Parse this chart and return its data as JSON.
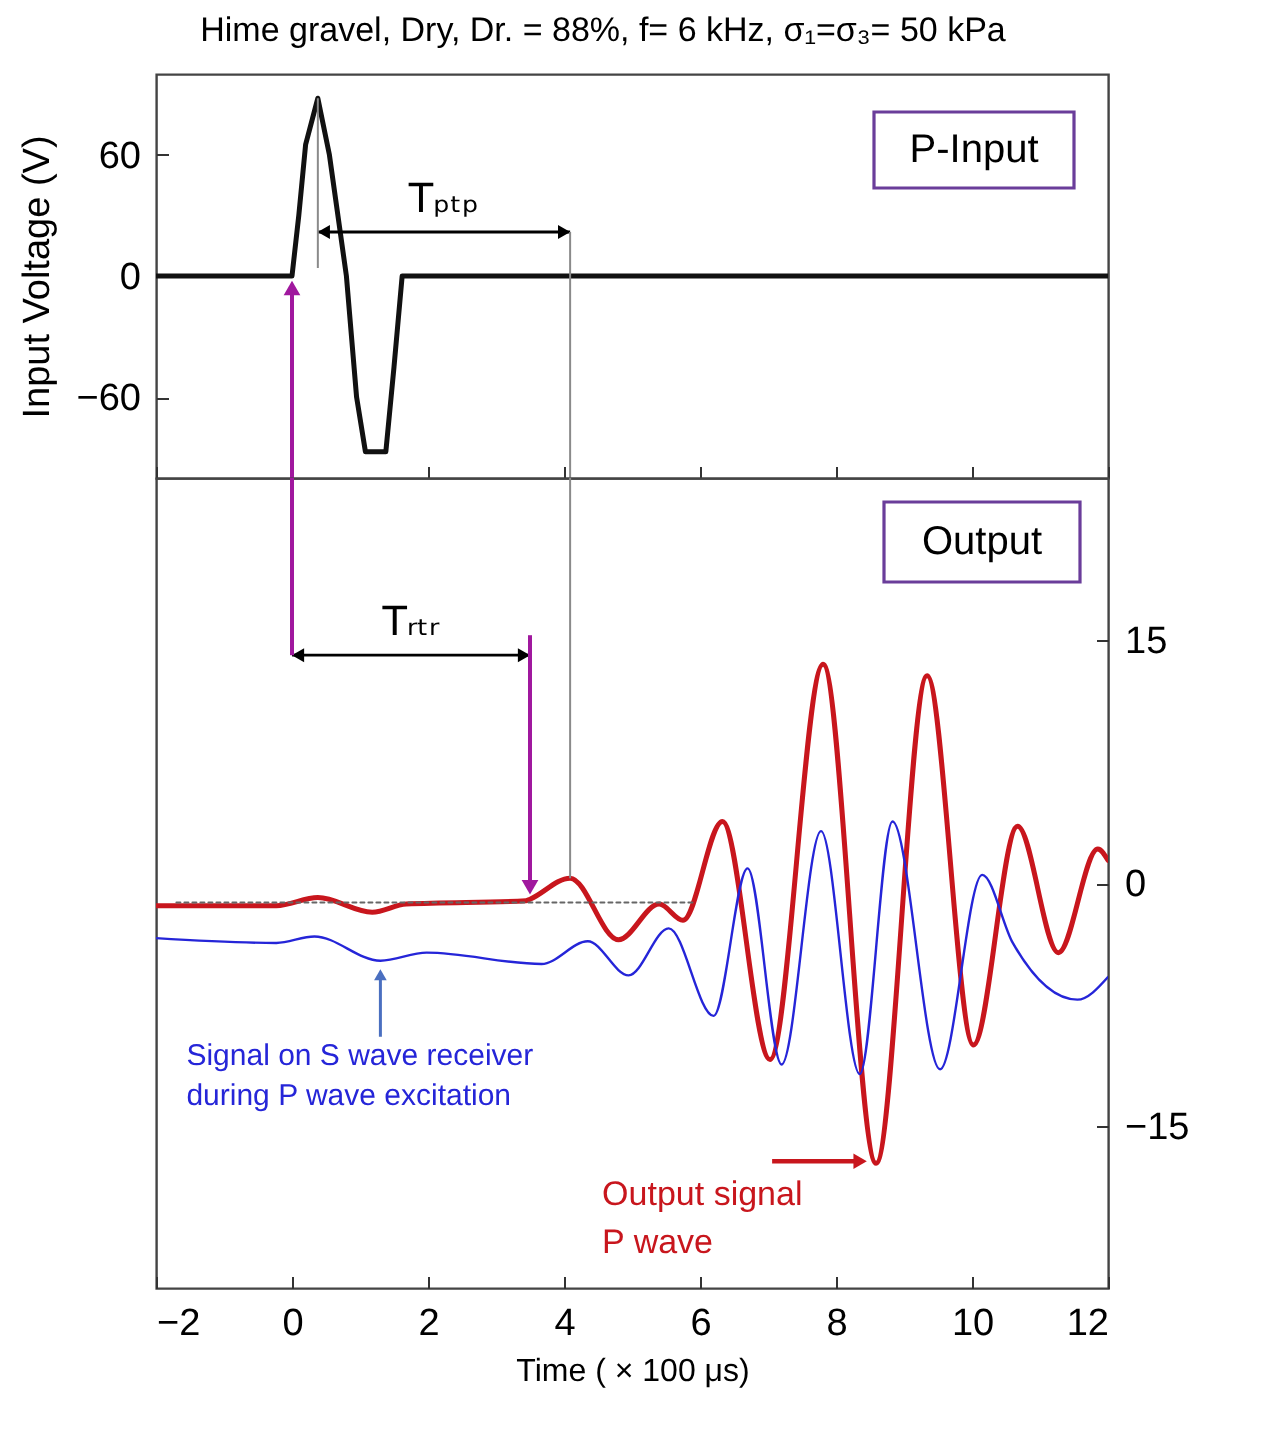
{
  "chart_data": [
    {
      "type": "line",
      "title": "Hime gravel, Dry, Dr. = 88%, f= 6 kHz, σ₁=σ₃= 50 kPa",
      "ylabel": "Input  Voltage  (V)",
      "xlim": [
        -2,
        12
      ],
      "xticks": [
        -2,
        0,
        2,
        4,
        6,
        8,
        10,
        12
      ],
      "ylim": [
        -100,
        100
      ],
      "yticks": [
        -60,
        0,
        60
      ],
      "tick_labels": "y",
      "series": [
        {
          "color": "#111111",
          "x": [
            -2,
            0,
            0.1,
            0.2,
            0.38,
            0.55,
            0.8,
            0.95,
            1.08,
            1.38,
            1.5,
            1.62,
            12
          ],
          "values": [
            0,
            0,
            30,
            65,
            88,
            60,
            0,
            -60,
            -87,
            -87,
            -45,
            0,
            0
          ]
        }
      ],
      "annotations": [
        "P-Input",
        {
          "text": "Tₚₜₚ",
          "x": 4.09,
          "y": 0
        }
      ]
    },
    {
      "type": "line",
      "xlabel": "Time ( × 100 μs)",
      "xlim": [
        -2,
        12
      ],
      "xticks": [
        -2,
        0,
        2,
        4,
        6,
        8,
        10,
        12
      ],
      "ylim": [
        -25,
        25
      ],
      "yticks": [
        -15,
        0,
        15
      ],
      "series": [
        {
          "color": "#c8161d",
          "x": [
            -2,
            -0.23,
            0.38,
            1.18,
            1.68,
            3.44,
            3.5,
            4.09,
            4.8,
            5.4,
            5.75,
            6.33,
            7.03,
            7.81,
            8.59,
            9.34,
            10.02,
            10.67,
            11.27,
            11.85,
            12
          ],
          "values": [
            -1.4,
            -1.4,
            -0.9,
            -1.8,
            -1.3,
            -1.1,
            -1,
            0.3,
            -3.5,
            -1.3,
            -2.3,
            3.8,
            -10.9,
            13.5,
            -17.3,
            12.8,
            -10,
            3.5,
            -4.3,
            2.1,
            1.4
          ]
        },
        {
          "color": "#2525d8",
          "x": [
            -2,
            -0.23,
            0.33,
            1.3,
            1.98,
            3.67,
            4.35,
            4.95,
            5.54,
            6.2,
            6.7,
            7.2,
            7.78,
            8.35,
            8.83,
            9.53,
            10.15,
            10.6,
            11.55,
            12
          ],
          "values": [
            -3.4,
            -3.7,
            -3.3,
            -4.8,
            -4.3,
            -5,
            -3.6,
            -5.7,
            -2.8,
            -8.2,
            0.9,
            -11.2,
            3.2,
            -11.8,
            3.8,
            -11.5,
            0.5,
            -3.7,
            -7.2,
            -5.8
          ]
        },
        {
          "color": "#666666",
          "line_style": "dotted",
          "x": [
            -1.7,
            5.9
          ],
          "values": [
            -1.2,
            -1.2
          ]
        }
      ],
      "annotations": [
        "Output",
        "Tᵣₜᵣ",
        {
          "text": "Signal on S wave receiver\nduring P wave excitation",
          "x": 1.3,
          "y": -4.8
        },
        {
          "text": "Output signal\nP wave",
          "x": 8.59,
          "y": -17.3
        }
      ]
    }
  ]
}
